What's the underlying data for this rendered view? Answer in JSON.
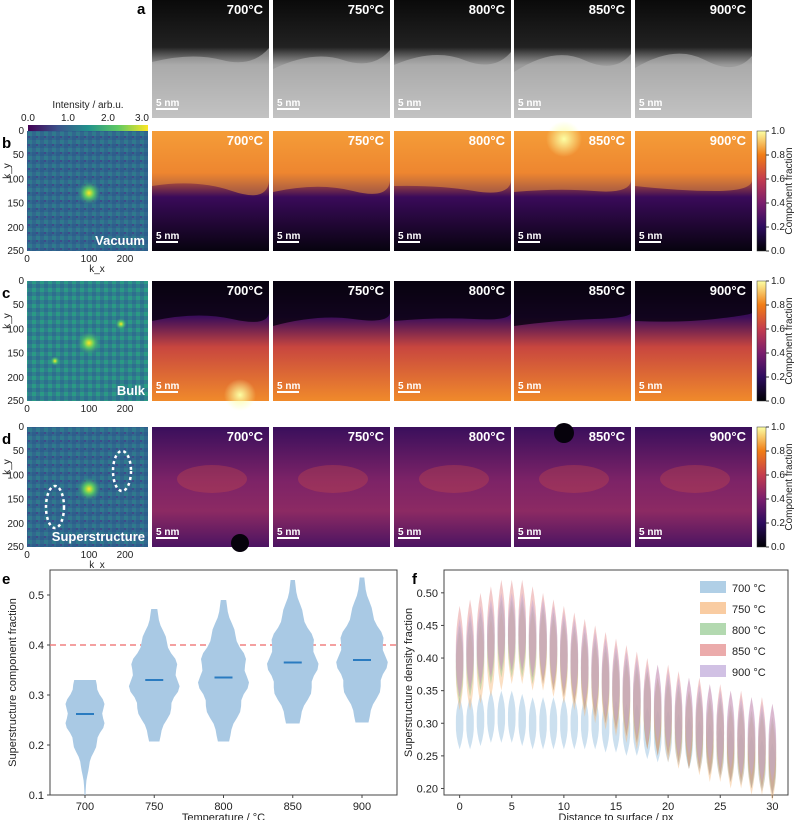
{
  "panel_labels": [
    "a",
    "b",
    "c",
    "d",
    "e",
    "f"
  ],
  "temperatures": [
    "700°C",
    "750°C",
    "800°C",
    "850°C",
    "900°C"
  ],
  "scale_bar": "5 nm",
  "components": [
    {
      "id": "b",
      "name": "Vacuum"
    },
    {
      "id": "c",
      "name": "Bulk"
    },
    {
      "id": "d",
      "name": "Superstructure"
    }
  ],
  "fft_axes": {
    "xlabel": "k_x",
    "ylabel": "k_y",
    "x_ticks": [
      "0",
      "100",
      "200"
    ],
    "y_ticks": [
      "0",
      "50",
      "100",
      "150",
      "200",
      "250"
    ]
  },
  "intensity_bar": {
    "label": "Intensity / arb.u.",
    "ticks": [
      "0.0",
      "1.0",
      "2.0",
      "3.0"
    ]
  },
  "component_bar": {
    "label": "Component fraction",
    "ticks": [
      "1.0",
      "0.8",
      "0.6",
      "0.4",
      "0.2",
      "0.0"
    ]
  },
  "colors": {
    "violin_e": "#a9c9e4",
    "median_line": "#2a7bc0",
    "threshold": "#f08080",
    "series_700": "#8fbadc",
    "series_750": "#f6b77a",
    "series_800": "#93c98e",
    "series_850": "#e28888",
    "series_900": "#bea7d8"
  },
  "chart_data": [
    {
      "id": "e",
      "type": "violin",
      "xlabel": "Temperature / °C",
      "ylabel": "Superstructure component fraction",
      "categories": [
        "700",
        "750",
        "800",
        "850",
        "900"
      ],
      "ylim": [
        0.1,
        0.55
      ],
      "y_ticks": [
        "0.1",
        "0.2",
        "0.3",
        "0.4",
        "0.5"
      ],
      "threshold": 0.4,
      "medians": [
        0.262,
        0.33,
        0.335,
        0.365,
        0.37
      ],
      "mins": [
        0.1,
        0.207,
        0.207,
        0.243,
        0.245
      ],
      "maxs": [
        0.33,
        0.472,
        0.49,
        0.53,
        0.535
      ]
    },
    {
      "id": "f",
      "type": "violin",
      "xlabel": "Distance to surface / px",
      "ylabel": "Superstructure density fraction",
      "x_ticks": [
        "0",
        "5",
        "10",
        "15",
        "20",
        "25",
        "30"
      ],
      "y_ticks": [
        "0.20",
        "0.25",
        "0.30",
        "0.35",
        "0.40",
        "0.45",
        "0.50"
      ],
      "xlim": [
        -1.5,
        31.5
      ],
      "ylim": [
        0.19,
        0.535
      ],
      "legend_position": "top-right",
      "series": [
        {
          "name": "700 °C",
          "center": [
            0.3,
            0.3,
            0.305,
            0.31,
            0.31,
            0.31,
            0.305,
            0.3,
            0.3,
            0.3,
            0.3,
            0.3,
            0.3,
            0.3,
            0.295,
            0.295,
            0.29,
            0.29,
            0.285,
            0.28,
            0.28,
            0.275,
            0.27,
            0.265,
            0.26,
            0.255,
            0.25,
            0.245,
            0.24,
            0.235,
            0.23
          ],
          "half": 0.04
        },
        {
          "name": "750 °C",
          "center": [
            0.38,
            0.38,
            0.39,
            0.4,
            0.41,
            0.42,
            0.42,
            0.41,
            0.41,
            0.4,
            0.39,
            0.38,
            0.37,
            0.36,
            0.35,
            0.34,
            0.33,
            0.32,
            0.32,
            0.31,
            0.3,
            0.29,
            0.29,
            0.28,
            0.27,
            0.27,
            0.26,
            0.26,
            0.25,
            0.25,
            0.24
          ],
          "half": 0.06
        },
        {
          "name": "800 °C",
          "center": [
            0.39,
            0.4,
            0.41,
            0.42,
            0.43,
            0.43,
            0.43,
            0.42,
            0.42,
            0.41,
            0.4,
            0.39,
            0.38,
            0.37,
            0.36,
            0.35,
            0.34,
            0.33,
            0.32,
            0.31,
            0.31,
            0.3,
            0.29,
            0.29,
            0.28,
            0.28,
            0.27,
            0.27,
            0.26,
            0.26,
            0.25
          ],
          "half": 0.06
        },
        {
          "name": "850 °C",
          "center": [
            0.41,
            0.42,
            0.43,
            0.44,
            0.45,
            0.45,
            0.45,
            0.44,
            0.43,
            0.42,
            0.41,
            0.4,
            0.39,
            0.38,
            0.37,
            0.36,
            0.35,
            0.34,
            0.33,
            0.32,
            0.32,
            0.31,
            0.3,
            0.3,
            0.29,
            0.29,
            0.28,
            0.28,
            0.27,
            0.27,
            0.26
          ],
          "half": 0.07
        },
        {
          "name": "900 °C",
          "center": [
            0.4,
            0.41,
            0.42,
            0.43,
            0.44,
            0.44,
            0.44,
            0.43,
            0.43,
            0.42,
            0.41,
            0.4,
            0.39,
            0.38,
            0.37,
            0.36,
            0.35,
            0.34,
            0.33,
            0.33,
            0.32,
            0.31,
            0.31,
            0.3,
            0.3,
            0.29,
            0.29,
            0.28,
            0.28,
            0.27,
            0.27
          ],
          "half": 0.06
        }
      ]
    }
  ]
}
